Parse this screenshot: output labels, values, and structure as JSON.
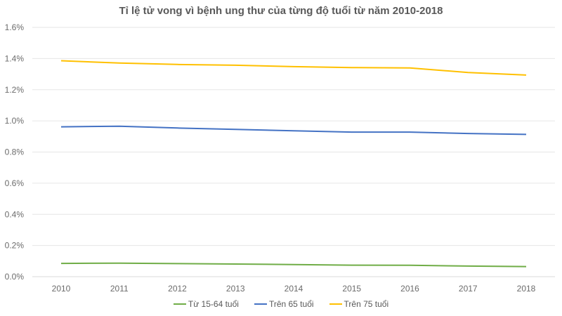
{
  "chart_data": {
    "type": "line",
    "title": "Tỉ lệ tử vong vì bệnh ung thư của từng độ tuổi từ năm 2010-2018",
    "xlabel": "",
    "ylabel": "",
    "categories": [
      "2010",
      "2011",
      "2012",
      "2013",
      "2014",
      "2015",
      "2016",
      "2017",
      "2018"
    ],
    "yticks": [
      "0.0%",
      "0.2%",
      "0.4%",
      "0.6%",
      "0.8%",
      "1.0%",
      "1.2%",
      "1.4%",
      "1.6%"
    ],
    "ylim": [
      0,
      1.6
    ],
    "grid": true,
    "legend_position": "bottom",
    "series": [
      {
        "name": "Từ 15-64 tuổi",
        "color": "#70ad47",
        "values": [
          0.085,
          0.087,
          0.084,
          0.081,
          0.078,
          0.074,
          0.073,
          0.068,
          0.065
        ]
      },
      {
        "name": "Trên 65 tuổi",
        "color": "#4472c4",
        "values": [
          0.962,
          0.966,
          0.954,
          0.945,
          0.936,
          0.928,
          0.928,
          0.919,
          0.913
        ]
      },
      {
        "name": "Trên 75 tuổi",
        "color": "#ffc000",
        "values": [
          1.386,
          1.371,
          1.362,
          1.357,
          1.348,
          1.342,
          1.34,
          1.31,
          1.294
        ]
      }
    ]
  }
}
